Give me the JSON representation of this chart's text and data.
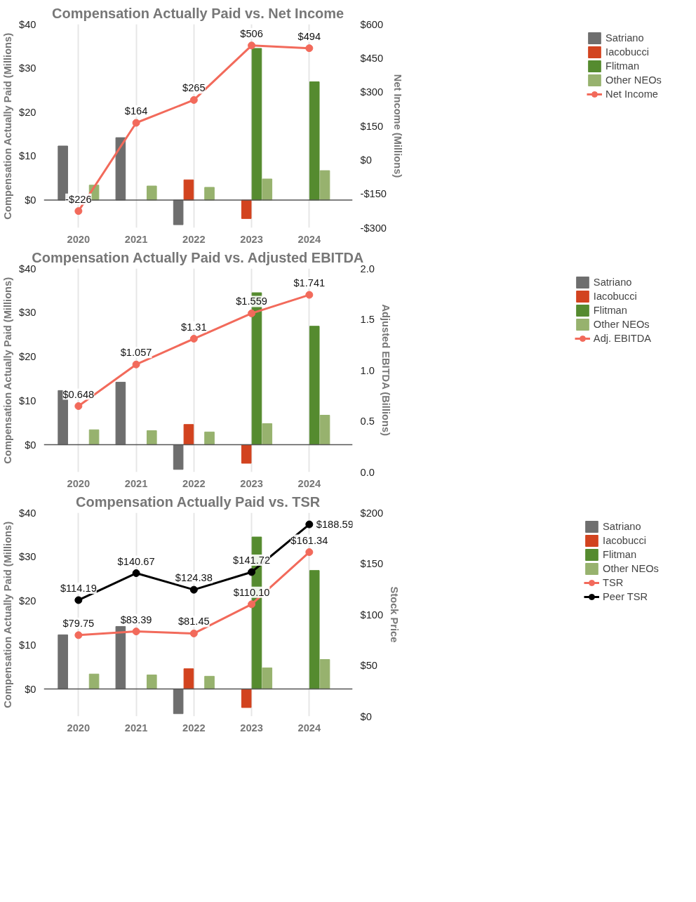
{
  "chart_data": [
    {
      "type": "bar",
      "title": "Compensation Actually Paid vs. Net Income",
      "ylabel": "Compensation Actually Paid (Millions)",
      "y2label": "Net Income (Millions)",
      "categories": [
        "2020",
        "2021",
        "2022",
        "2023",
        "2024"
      ],
      "ylim": [
        -6.3,
        40
      ],
      "yticks": [
        {
          "value": 0,
          "label": "$0"
        },
        {
          "value": 10,
          "label": "$10"
        },
        {
          "value": 20,
          "label": "$20"
        },
        {
          "value": 30,
          "label": "$30"
        },
        {
          "value": 40,
          "label": "$40"
        }
      ],
      "y2lim": [
        -300,
        600
      ],
      "y2ticks": [
        {
          "value": -300,
          "label": "-$300"
        },
        {
          "value": -150,
          "label": "-$150"
        },
        {
          "value": 0,
          "label": "$0"
        },
        {
          "value": 150,
          "label": "$150"
        },
        {
          "value": 300,
          "label": "$300"
        },
        {
          "value": 450,
          "label": "$450"
        },
        {
          "value": 600,
          "label": "$600"
        }
      ],
      "grid": "x",
      "legend": "right",
      "marker": "circle",
      "series": [
        {
          "name": "Satriano",
          "color": "#6e6e6e",
          "values": [
            12.3,
            14.2,
            -5.6,
            null,
            null
          ]
        },
        {
          "name": "Iacobucci",
          "color": "#d2431f",
          "values": [
            null,
            null,
            4.6,
            -4.2,
            null
          ]
        },
        {
          "name": "Flitman",
          "color": "#558b2f",
          "values": [
            null,
            null,
            null,
            34.5,
            26.9
          ]
        },
        {
          "name": "Other NEOs",
          "color": "#97b26e",
          "values": [
            3.4,
            3.2,
            2.9,
            4.8,
            6.7
          ]
        },
        {
          "name": "Net Income",
          "type": "line",
          "axis": "y2",
          "color": "#f26a5b",
          "values": [
            -226,
            164,
            265,
            506,
            494
          ],
          "value_labels": [
            "-$226",
            "$164",
            "$265",
            "$506",
            "$494"
          ]
        }
      ]
    },
    {
      "type": "bar",
      "title": "Compensation Actually Paid vs. Adjusted EBITDA",
      "ylabel": "Compensation Actually Paid (Millions)",
      "y2label": "Adjusted EBITDA (Billions)",
      "categories": [
        "2020",
        "2021",
        "2022",
        "2023",
        "2024"
      ],
      "ylim": [
        -6.2,
        40
      ],
      "yticks": [
        {
          "value": 0,
          "label": "$0"
        },
        {
          "value": 10,
          "label": "$10"
        },
        {
          "value": 20,
          "label": "$20"
        },
        {
          "value": 30,
          "label": "$30"
        },
        {
          "value": 40,
          "label": "$40"
        }
      ],
      "y2lim": [
        0,
        2
      ],
      "y2ticks": [
        {
          "value": 0,
          "label": "0.0"
        },
        {
          "value": 0.5,
          "label": "0.5"
        },
        {
          "value": 1,
          "label": "1.0"
        },
        {
          "value": 1.5,
          "label": "1.5"
        },
        {
          "value": 2,
          "label": "2.0"
        }
      ],
      "grid": "x",
      "legend": "right",
      "marker": "circle",
      "series": [
        {
          "name": "Satriano",
          "color": "#6e6e6e",
          "values": [
            12.3,
            14.2,
            -5.6,
            null,
            null
          ]
        },
        {
          "name": "Iacobucci",
          "color": "#d2431f",
          "values": [
            null,
            null,
            4.6,
            -4.2,
            null
          ]
        },
        {
          "name": "Flitman",
          "color": "#558b2f",
          "values": [
            null,
            null,
            null,
            34.5,
            26.9
          ]
        },
        {
          "name": "Other NEOs",
          "color": "#97b26e",
          "values": [
            3.4,
            3.2,
            2.9,
            4.8,
            6.7
          ]
        },
        {
          "name": "Adj. EBITDA",
          "type": "line",
          "axis": "y2",
          "color": "#f26a5b",
          "values": [
            0.648,
            1.057,
            1.31,
            1.559,
            1.741
          ],
          "value_labels": [
            "$0.648",
            "$1.057",
            "$1.31",
            "$1.559",
            "$1.741"
          ]
        }
      ]
    },
    {
      "type": "bar",
      "title": "Compensation Actually Paid vs. TSR",
      "ylabel": "Compensation Actually Paid (Millions)",
      "y2label": "Stock Price",
      "categories": [
        "2020",
        "2021",
        "2022",
        "2023",
        "2024"
      ],
      "ylim": [
        -6.2,
        40
      ],
      "yticks": [
        {
          "value": 0,
          "label": "$0"
        },
        {
          "value": 10,
          "label": "$10"
        },
        {
          "value": 20,
          "label": "$20"
        },
        {
          "value": 30,
          "label": "$30"
        },
        {
          "value": 40,
          "label": "$40"
        }
      ],
      "y2lim": [
        0,
        200
      ],
      "y2ticks": [
        {
          "value": 0,
          "label": "$0"
        },
        {
          "value": 50,
          "label": "$50"
        },
        {
          "value": 100,
          "label": "$100"
        },
        {
          "value": 150,
          "label": "$150"
        },
        {
          "value": 200,
          "label": "$200"
        }
      ],
      "grid": "x",
      "legend": "right",
      "marker": "circle",
      "series": [
        {
          "name": "Satriano",
          "color": "#6e6e6e",
          "values": [
            12.3,
            14.2,
            -5.6,
            null,
            null
          ]
        },
        {
          "name": "Iacobucci",
          "color": "#d2431f",
          "values": [
            null,
            null,
            4.6,
            -4.2,
            null
          ]
        },
        {
          "name": "Flitman",
          "color": "#558b2f",
          "values": [
            null,
            null,
            null,
            34.5,
            26.9
          ]
        },
        {
          "name": "Other NEOs",
          "color": "#97b26e",
          "values": [
            3.4,
            3.2,
            2.9,
            4.8,
            6.7
          ]
        },
        {
          "name": "TSR",
          "type": "line",
          "axis": "y2",
          "color": "#f26a5b",
          "values": [
            79.75,
            83.39,
            81.45,
            110.1,
            161.34
          ],
          "value_labels": [
            "$79.75",
            "$83.39",
            "$81.45",
            "$110.10",
            "$161.34"
          ]
        },
        {
          "name": "Peer TSR",
          "type": "line",
          "axis": "y2",
          "color": "#000000",
          "values": [
            114.19,
            140.67,
            124.38,
            141.72,
            188.59
          ],
          "value_labels": [
            "$114.19",
            "$140.67",
            "$124.38",
            "$141.72",
            "$188.59"
          ]
        }
      ]
    }
  ]
}
